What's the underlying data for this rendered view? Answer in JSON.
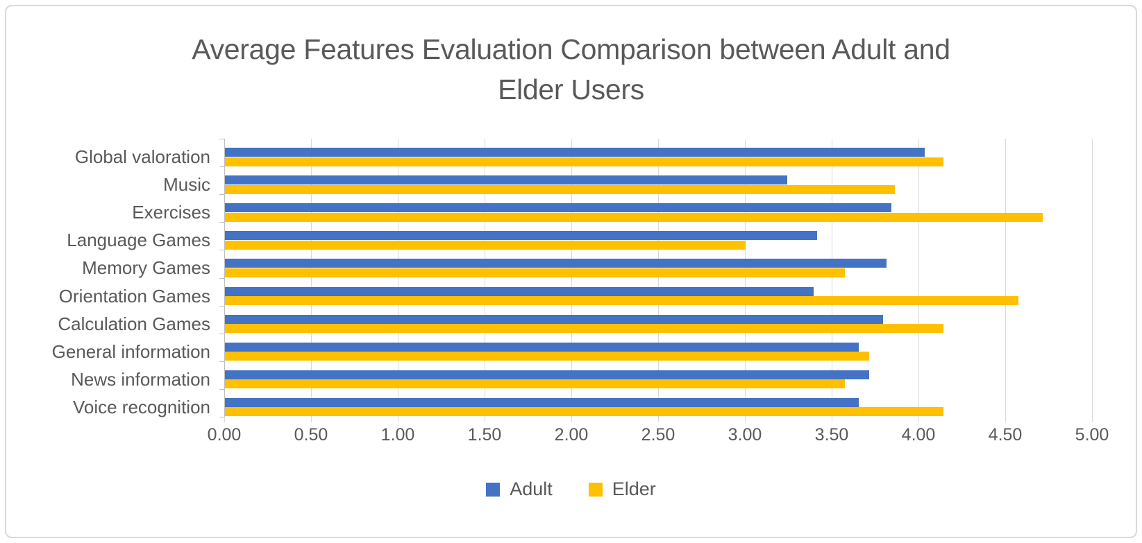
{
  "title": {
    "full": "Average Features Evaluation Comparison between Adult and Elder Users",
    "line1": "Average Features Evaluation Comparison between Adult and",
    "line2": "Elder Users"
  },
  "chart_data": {
    "type": "bar",
    "orientation": "horizontal",
    "title": "Average Features Evaluation Comparison between Adult and Elder Users",
    "categories": [
      "Global valoration",
      "Music",
      "Exercises",
      "Language Games",
      "Memory Games",
      "Orientation Games",
      "Calculation Games",
      "General information",
      "News information",
      "Voice recognition"
    ],
    "series": [
      {
        "name": "Adult",
        "color": "#4472C4",
        "values": [
          4.03,
          3.24,
          3.84,
          3.41,
          3.81,
          3.39,
          3.79,
          3.65,
          3.71,
          3.65
        ]
      },
      {
        "name": "Elder",
        "color": "#FFC000",
        "values": [
          4.14,
          3.86,
          4.71,
          3.0,
          3.57,
          4.57,
          4.14,
          3.71,
          3.57,
          4.14
        ]
      }
    ],
    "xlabel": "",
    "ylabel": "",
    "xlim": [
      0,
      5
    ],
    "x_ticks": [
      "0.00",
      "0.50",
      "1.00",
      "1.50",
      "2.00",
      "2.50",
      "3.00",
      "3.50",
      "4.00",
      "4.50",
      "5.00"
    ],
    "grid": "vertical",
    "legend_position": "bottom"
  },
  "legend": {
    "items": [
      {
        "label": "Adult",
        "color": "#4472C4"
      },
      {
        "label": "Elder",
        "color": "#FFC000"
      }
    ]
  },
  "colors": {
    "adult": "#4472C4",
    "elder": "#FFC000",
    "text": "#595959",
    "gridline": "#D9D9D9",
    "axis": "#BFBFBF",
    "border": "#D9D9D9",
    "background": "#FFFFFF"
  }
}
